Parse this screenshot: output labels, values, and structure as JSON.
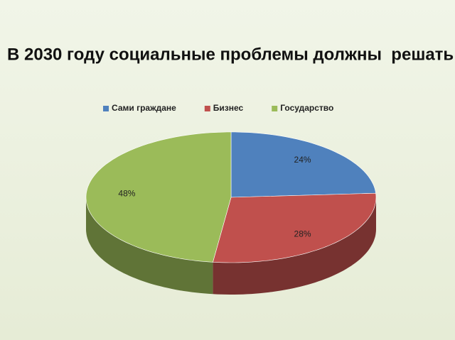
{
  "chart_data": {
    "type": "pie3d",
    "title": "В 2030 году социальные проблемы должны  решать:",
    "categories": [
      "Сами граждане",
      "Бизнес",
      "Государство"
    ],
    "values": [
      24,
      28,
      48
    ],
    "value_labels": [
      "24%",
      "28%",
      "48%"
    ],
    "colors": [
      "#4f81bd",
      "#c0504d",
      "#9bbb59"
    ],
    "legend": "top"
  }
}
